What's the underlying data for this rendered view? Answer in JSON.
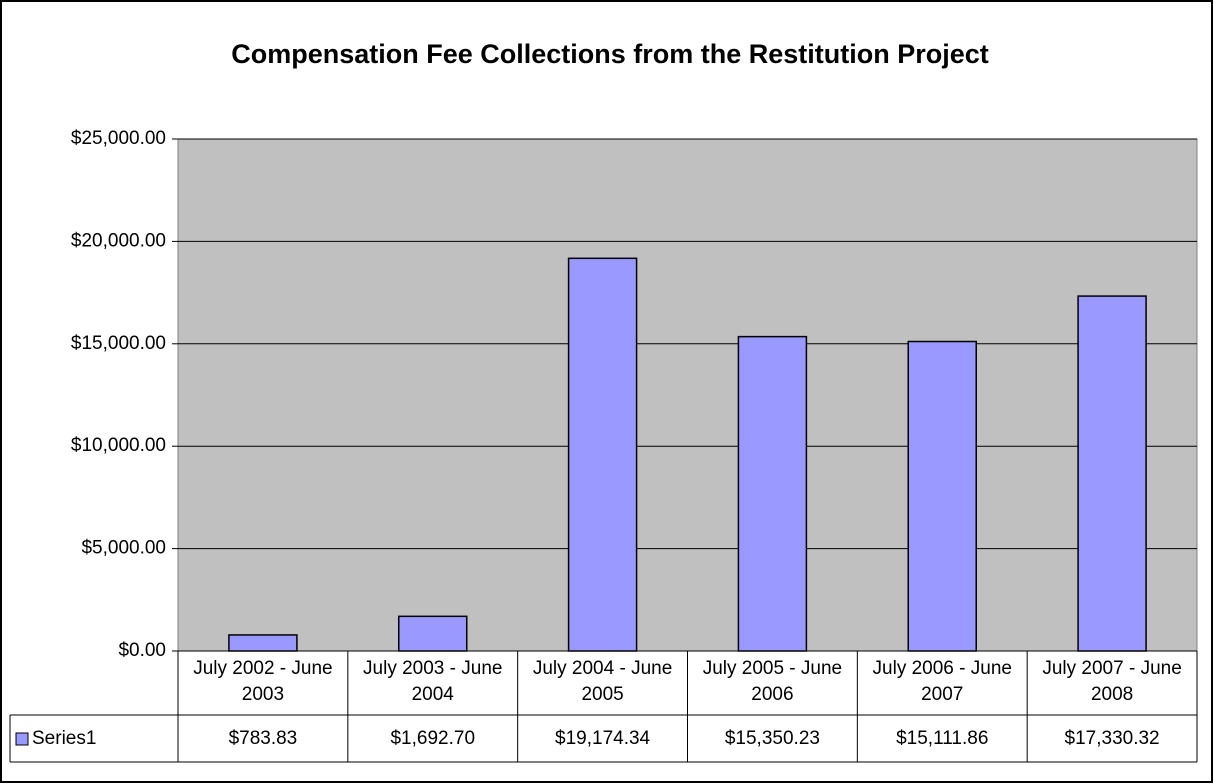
{
  "chart_data": {
    "type": "bar",
    "title": "Compensation Fee Collections from the Restitution Project",
    "categories": [
      "July 2002 - June 2003",
      "July 2003 - June 2004",
      "July 2004 - June 2005",
      "July 2005 - June 2006",
      "July 2006 - June 2007",
      "July 2007 - June 2008"
    ],
    "series": [
      {
        "name": "Series1",
        "color": "#9999ff",
        "values": [
          783.83,
          1692.7,
          19174.34,
          15350.23,
          15111.86,
          17330.32
        ],
        "value_labels": [
          "$783.83",
          "$1,692.70",
          "$19,174.34",
          "$15,350.23",
          "$15,111.86",
          "$17,330.32"
        ]
      }
    ],
    "ylim": [
      0,
      25000
    ],
    "yticks": [
      {
        "value": 0,
        "label": "$0.00"
      },
      {
        "value": 5000,
        "label": "$5,000.00"
      },
      {
        "value": 10000,
        "label": "$10,000.00"
      },
      {
        "value": 15000,
        "label": "$15,000.00"
      },
      {
        "value": 20000,
        "label": "$20,000.00"
      },
      {
        "value": 25000,
        "label": "$25,000.00"
      }
    ],
    "grid": true
  }
}
